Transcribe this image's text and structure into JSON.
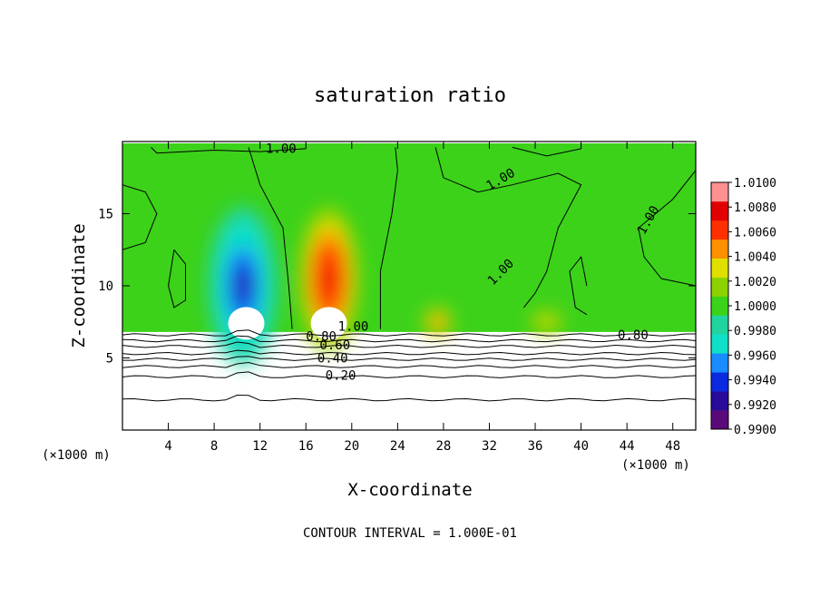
{
  "chart_data": {
    "type": "heatmap",
    "title": "saturation ratio",
    "xlabel": "X-coordinate",
    "ylabel": "Z-coordinate",
    "x_unit_label": "(×1000 m)",
    "z_unit_label": "(×1000 m)",
    "xlim": [
      0,
      50
    ],
    "ylim": [
      0,
      20
    ],
    "x_ticks": [
      4,
      8,
      12,
      16,
      20,
      24,
      28,
      32,
      36,
      40,
      44,
      48
    ],
    "x_tick_labels": [
      "4",
      "8",
      "12",
      "16",
      "20",
      "24",
      "28",
      "32",
      "36",
      "40",
      "44",
      "48"
    ],
    "y_ticks": [
      5,
      10,
      15
    ],
    "y_tick_labels": [
      "5",
      "10",
      "15"
    ],
    "colorbar": {
      "min": 0.99,
      "max": 1.01,
      "labels": [
        "1.0100",
        "1.0080",
        "1.0060",
        "1.0040",
        "1.0020",
        "1.0000",
        "0.9980",
        "0.9960",
        "0.9940",
        "0.9920",
        "0.9900"
      ],
      "colors": [
        "#5a0a78",
        "#2a0a9a",
        "#0a2ae0",
        "#1a8cff",
        "#10e0c8",
        "#20d4a0",
        "#3cd21a",
        "#8cd200",
        "#e0e000",
        "#ff9000",
        "#ff3000",
        "#e00000",
        "#ff9090"
      ]
    },
    "contour_labels": [
      "1.00",
      "1.00",
      "1.00",
      "1.00",
      "1.00",
      "0.80",
      "0.60",
      "0.40",
      "0.20",
      "0.80"
    ],
    "blobs": [
      {
        "x": 10.5,
        "z": 10.0,
        "value": 0.992,
        "sx": 3.0,
        "sz": 5.5
      },
      {
        "x": 18.0,
        "z": 10.5,
        "value": 1.008,
        "sx": 2.6,
        "sz": 5.0
      },
      {
        "x": 27.5,
        "z": 7.5,
        "value": 1.006,
        "sx": 1.2,
        "sz": 1.0
      },
      {
        "x": 37.0,
        "z": 7.5,
        "value": 1.004,
        "sx": 1.5,
        "sz": 0.8
      }
    ],
    "background_value": 1.0005,
    "cloud_base_z": 6.8,
    "contour_interval_note": "CONTOUR INTERVAL = 1.000E-01"
  }
}
